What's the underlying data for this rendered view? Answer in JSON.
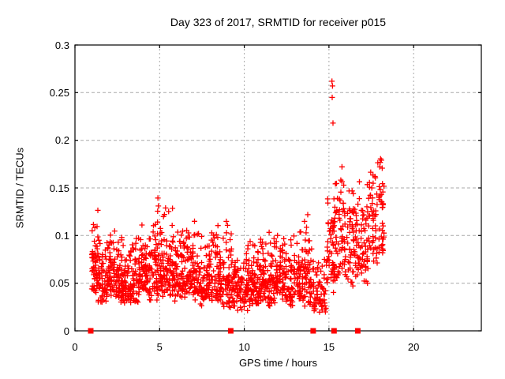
{
  "chart_data": {
    "type": "scatter",
    "title": "Day 323 of 2017, SRMTID for receiver p015",
    "xlabel": "GPS time / hours",
    "ylabel": "SRMTID / TECUs",
    "xlim": [
      0,
      24
    ],
    "ylim": [
      0,
      0.3
    ],
    "xticks": [
      0,
      5,
      10,
      15,
      20
    ],
    "xtick_labels": [
      "0",
      "5",
      "10",
      "15",
      "20"
    ],
    "yticks": [
      0,
      0.05,
      0.1,
      0.15,
      0.2,
      0.25,
      0.3
    ],
    "ytick_labels": [
      "0",
      "0.05",
      "0.1",
      "0.15",
      "0.2",
      "0.25",
      "0.3"
    ],
    "grid": true,
    "legend": "none",
    "marker": "plus-cross",
    "colors": {
      "marker": "#ff0000",
      "grid": "#a8a8a8",
      "border": "#000000",
      "background": "#ffffff",
      "text": "#000000"
    },
    "series": [
      {
        "name": "srmtid-points",
        "type": "binned-scatter",
        "bins_format": [
          "x0",
          "x1",
          "count",
          "y_min",
          "y_mode",
          "y_max"
        ],
        "bins": [
          [
            0.95,
            1.35,
            55,
            0.038,
            0.06,
            0.135
          ],
          [
            1.35,
            1.85,
            55,
            0.03,
            0.055,
            0.1
          ],
          [
            1.85,
            2.35,
            60,
            0.035,
            0.06,
            0.115
          ],
          [
            2.35,
            2.85,
            60,
            0.03,
            0.055,
            0.1
          ],
          [
            2.85,
            3.35,
            55,
            0.025,
            0.05,
            0.095
          ],
          [
            3.35,
            3.85,
            55,
            0.03,
            0.055,
            0.1
          ],
          [
            3.85,
            4.35,
            55,
            0.035,
            0.06,
            0.12
          ],
          [
            4.35,
            4.85,
            55,
            0.03,
            0.06,
            0.115
          ],
          [
            4.85,
            5.35,
            60,
            0.035,
            0.065,
            0.142
          ],
          [
            5.35,
            5.85,
            55,
            0.035,
            0.065,
            0.13
          ],
          [
            5.85,
            6.35,
            55,
            0.03,
            0.06,
            0.105
          ],
          [
            6.35,
            6.85,
            55,
            0.035,
            0.06,
            0.125
          ],
          [
            6.85,
            7.35,
            55,
            0.03,
            0.055,
            0.115
          ],
          [
            7.35,
            7.85,
            50,
            0.025,
            0.05,
            0.1
          ],
          [
            7.85,
            8.35,
            50,
            0.03,
            0.055,
            0.105
          ],
          [
            8.35,
            8.85,
            55,
            0.025,
            0.055,
            0.115
          ],
          [
            8.85,
            9.35,
            55,
            0.02,
            0.05,
            0.115
          ],
          [
            9.35,
            9.85,
            50,
            0.015,
            0.045,
            0.09
          ],
          [
            9.85,
            10.35,
            55,
            0.02,
            0.05,
            0.105
          ],
          [
            10.35,
            10.85,
            55,
            0.025,
            0.05,
            0.1
          ],
          [
            10.85,
            11.35,
            55,
            0.03,
            0.055,
            0.105
          ],
          [
            11.35,
            11.85,
            55,
            0.025,
            0.055,
            0.105
          ],
          [
            11.85,
            12.35,
            55,
            0.03,
            0.055,
            0.105
          ],
          [
            12.35,
            12.85,
            50,
            0.025,
            0.05,
            0.105
          ],
          [
            12.85,
            13.35,
            50,
            0.03,
            0.055,
            0.115
          ],
          [
            13.35,
            13.85,
            50,
            0.025,
            0.055,
            0.125
          ],
          [
            13.85,
            14.35,
            45,
            0.015,
            0.045,
            0.095
          ],
          [
            14.35,
            14.85,
            35,
            0.01,
            0.04,
            0.08
          ],
          [
            14.85,
            15.35,
            55,
            0.04,
            0.08,
            0.165
          ],
          [
            15.35,
            15.85,
            50,
            0.05,
            0.09,
            0.19
          ],
          [
            15.85,
            16.35,
            40,
            0.05,
            0.09,
            0.16
          ],
          [
            16.35,
            16.85,
            50,
            0.045,
            0.085,
            0.175
          ],
          [
            16.85,
            17.35,
            45,
            0.05,
            0.09,
            0.155
          ],
          [
            17.35,
            17.85,
            45,
            0.07,
            0.11,
            0.19
          ],
          [
            17.85,
            18.25,
            40,
            0.08,
            0.12,
            0.185
          ]
        ]
      },
      {
        "name": "srmtid-outliers",
        "points": [
          [
            15.18,
            0.262
          ],
          [
            15.21,
            0.257
          ],
          [
            15.19,
            0.245
          ],
          [
            15.24,
            0.218
          ]
        ]
      },
      {
        "name": "zero-flags",
        "marker": "filled-square",
        "y": 0,
        "x": [
          0.93,
          9.2,
          14.07,
          15.3,
          16.7
        ]
      }
    ]
  }
}
